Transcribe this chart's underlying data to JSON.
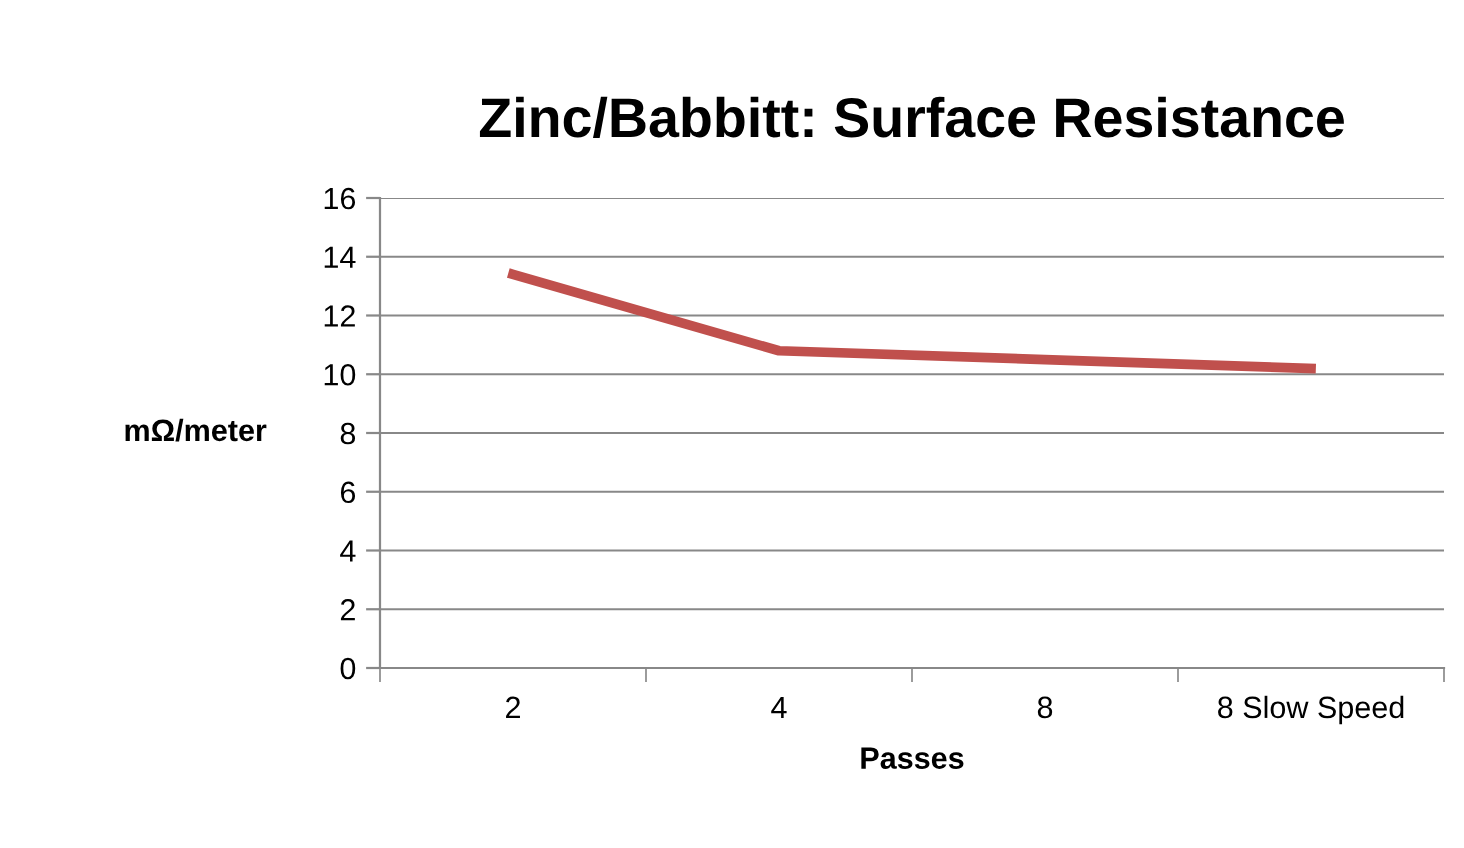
{
  "chart_data": {
    "type": "line",
    "title": "Zinc/Babbitt: Surface Resistance",
    "xlabel": "Passes",
    "ylabel": "mΩ/meter",
    "categories": [
      "2",
      "4",
      "8",
      "8 Slow Speed"
    ],
    "series": [
      {
        "color": "#c0504d",
        "values": [
          13.4,
          10.8,
          10.5,
          10.2
        ]
      }
    ],
    "ylim": [
      0,
      16
    ],
    "yticks": [
      0,
      2,
      4,
      6,
      8,
      10,
      12,
      14,
      16
    ],
    "grid": "y",
    "legend": false,
    "marker": "none",
    "line_style": "solid"
  }
}
